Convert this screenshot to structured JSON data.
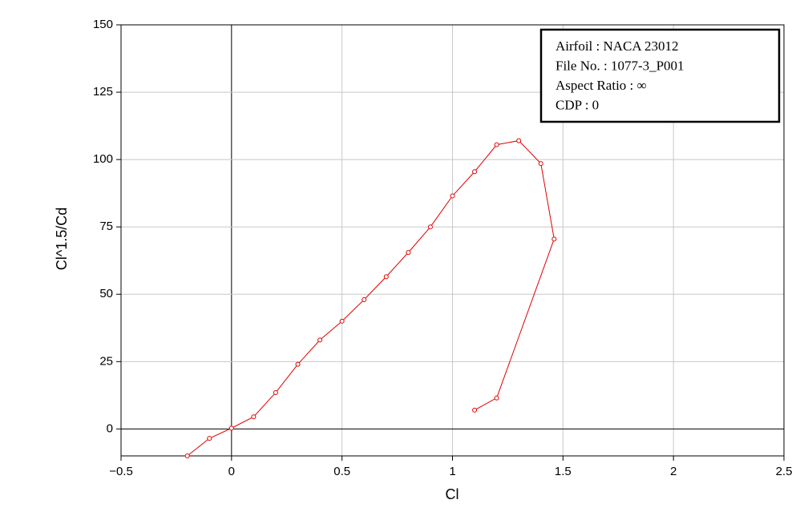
{
  "chart_data": {
    "type": "line",
    "xlabel": "Cl",
    "ylabel": "Cl^1.5/Cd",
    "annotations": [
      "Airfoil : NACA 23012",
      "File No. : 1077-3_P001",
      "Aspect Ratio : ∞",
      "CDP : 0"
    ],
    "series": [
      {
        "name": "NACA 23012",
        "color": "#e00000",
        "x": [
          -0.2,
          -0.1,
          0,
          0.1,
          0.2,
          0.3,
          0.4,
          0.5,
          0.6,
          0.7,
          0.8,
          0.9,
          1.0,
          1.1,
          1.2,
          1.3,
          1.4,
          1.46,
          1.2,
          1.1
        ],
        "values": [
          -10,
          -3.5,
          0.3,
          4.5,
          13.5,
          24,
          33,
          40,
          48,
          56.5,
          65.5,
          75,
          86.5,
          95.5,
          105.5,
          107,
          98.5,
          70.5,
          11.5,
          7
        ]
      }
    ],
    "xlim": [
      -0.5,
      2.5
    ],
    "xticks": [
      {
        "value": -0.5,
        "label": "−0.5"
      },
      0,
      0.5,
      1,
      1.5,
      2,
      2.5
    ],
    "ylim": [
      -10,
      150
    ],
    "yticks": [
      0,
      25,
      50,
      75,
      100,
      125,
      150
    ],
    "grid": true
  }
}
